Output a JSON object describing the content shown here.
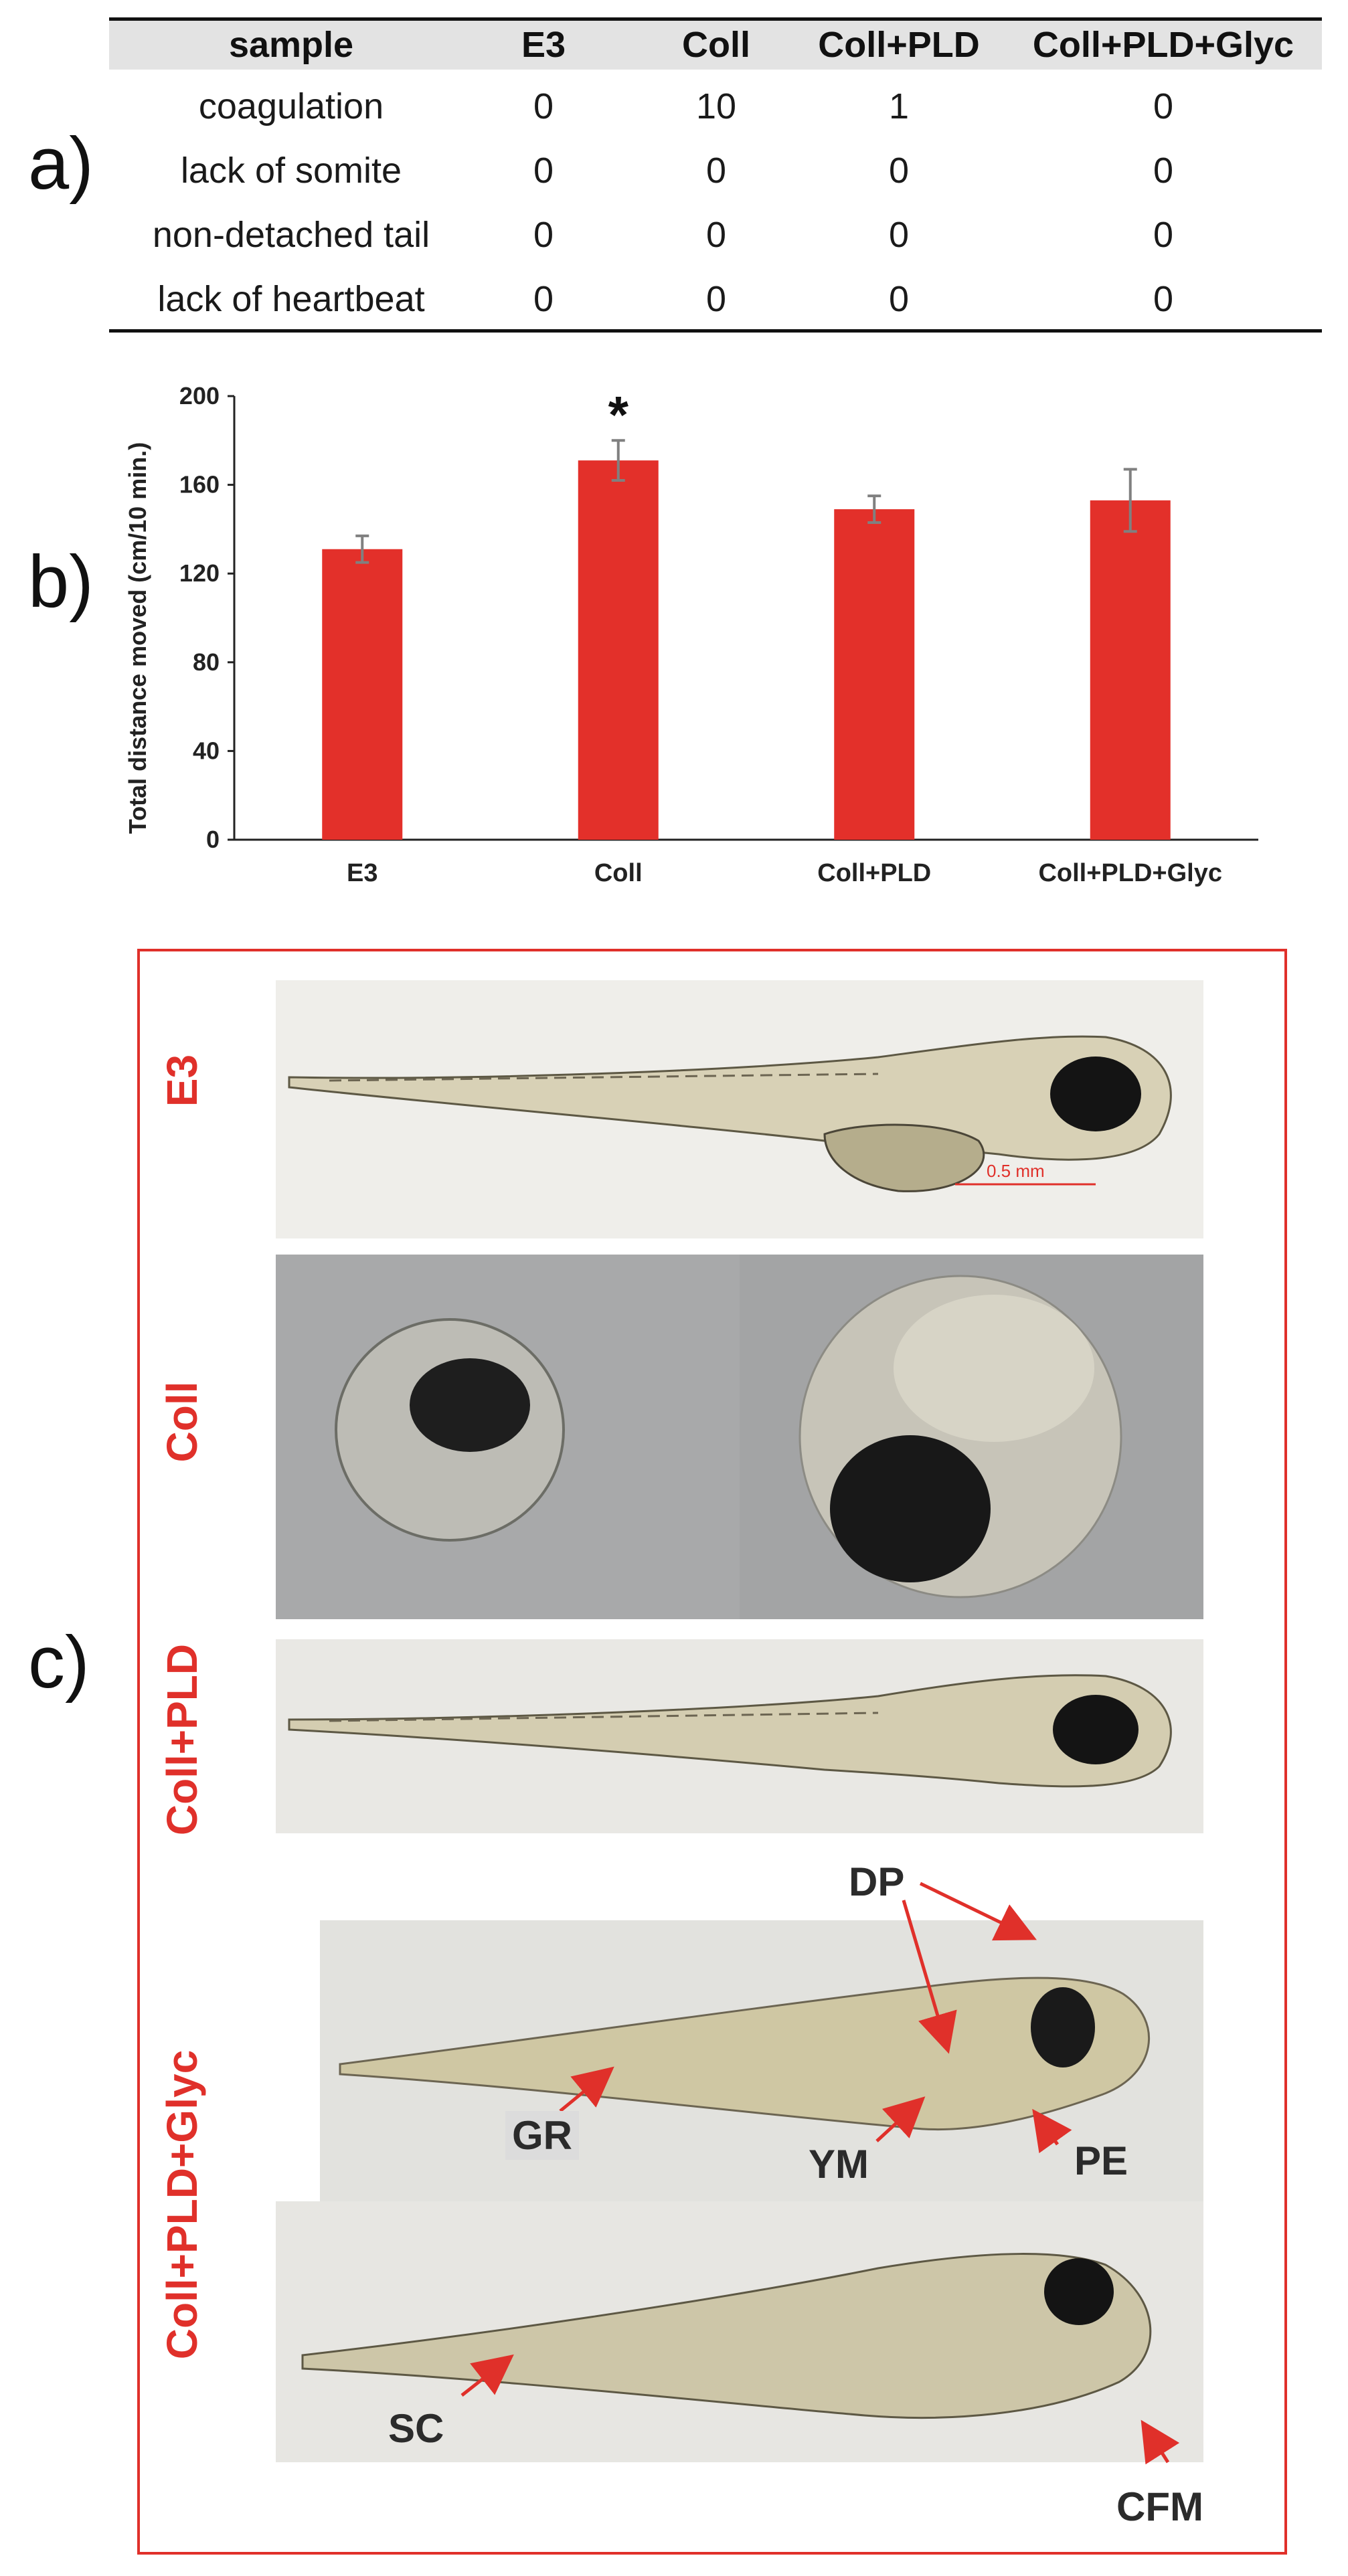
{
  "panel_labels": {
    "a": "a)",
    "b": "b)",
    "c": "c)"
  },
  "table": {
    "headers": [
      "sample",
      "E3",
      "Coll",
      "Coll+PLD",
      "Coll+PLD+Glyc"
    ],
    "rows": [
      {
        "label": "coagulation",
        "values": [
          "0",
          "10",
          "1",
          "0"
        ]
      },
      {
        "label": "lack of somite",
        "values": [
          "0",
          "0",
          "0",
          "0"
        ]
      },
      {
        "label": "non-detached tail",
        "values": [
          "0",
          "0",
          "0",
          "0"
        ]
      },
      {
        "label": "lack of heartbeat",
        "values": [
          "0",
          "0",
          "0",
          "0"
        ]
      }
    ]
  },
  "chart_data": {
    "type": "bar",
    "categories": [
      "E3",
      "Coll",
      "Coll+PLD",
      "Coll+PLD+Glyc"
    ],
    "values": [
      131,
      171,
      149,
      153
    ],
    "errors": [
      6,
      9,
      6,
      14
    ],
    "significance": [
      "",
      "*",
      "",
      ""
    ],
    "ylabel": "Total distance moved (cm/10 min.)",
    "xlabel": "",
    "ylim": [
      0,
      200
    ],
    "yticks": [
      0,
      40,
      80,
      120,
      160,
      200
    ],
    "grid": false,
    "bar_color": "#e3302a",
    "error_color": "#808080"
  },
  "panel_c": {
    "frame_color": "#e0302a",
    "row_labels": [
      "E3",
      "Coll",
      "Coll+PLD",
      "Coll+PLD+Glyc"
    ],
    "scale_bar": "0.5 mm",
    "annotations": [
      "DP",
      "GR",
      "YM",
      "PE",
      "SC",
      "CFM"
    ]
  }
}
